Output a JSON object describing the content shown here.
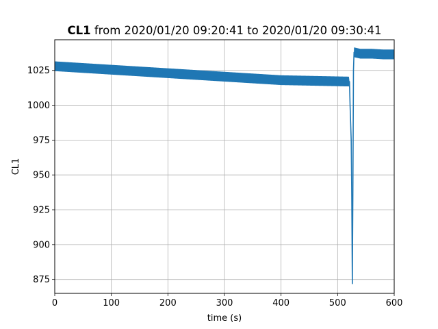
{
  "chart_data": {
    "type": "line",
    "title_bold": "CL1",
    "title_rest": " from 2020/01/20 09:20:41 to 2020/01/20 09:30:41",
    "xlabel": "time (s)",
    "ylabel": "CL1",
    "xlim": [
      0,
      600
    ],
    "ylim": [
      865,
      1047
    ],
    "xticks": [
      0,
      100,
      200,
      300,
      400,
      500,
      600
    ],
    "yticks": [
      875,
      900,
      925,
      950,
      975,
      1000,
      1025
    ],
    "grid": true,
    "series": [
      {
        "color": "#1f77b4",
        "noise_band": 3.5,
        "x": [
          0,
          100,
          200,
          300,
          400,
          521,
          521.5,
          522,
          524,
          525,
          526,
          527,
          528,
          529,
          540,
          560,
          580,
          600
        ],
        "y": [
          1028,
          1025.5,
          1023,
          1020.5,
          1018,
          1017,
          1008,
          1000,
          975,
          935,
          872,
          940,
          1025,
          1038,
          1037,
          1037,
          1036.5,
          1036.5
        ]
      }
    ]
  }
}
